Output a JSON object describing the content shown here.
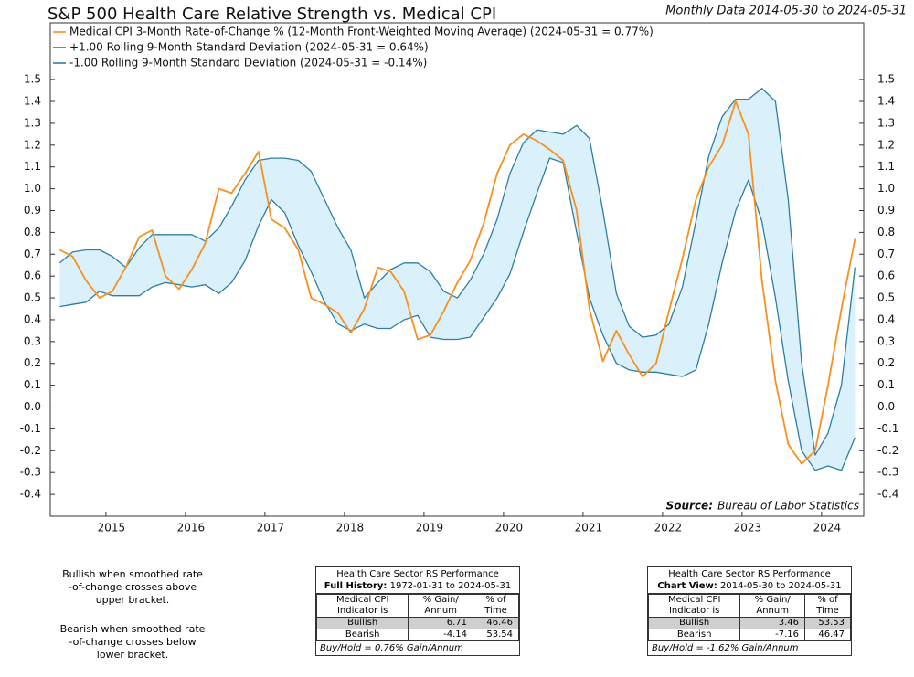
{
  "chart_data": {
    "type": "line",
    "title": "S&P 500 Health Care Relative Strength vs. Medical CPI",
    "subtitle": "Monthly Data 2014-05-30 to 2024-05-31",
    "source_label": "Source:",
    "source": "Bureau of Labor Statistics",
    "x": [
      2014.42,
      2014.58,
      2014.75,
      2014.92,
      2015.08,
      2015.25,
      2015.42,
      2015.58,
      2015.75,
      2015.92,
      2016.08,
      2016.25,
      2016.42,
      2016.58,
      2016.75,
      2016.92,
      2017.08,
      2017.25,
      2017.42,
      2017.58,
      2017.75,
      2017.92,
      2018.08,
      2018.25,
      2018.42,
      2018.58,
      2018.75,
      2018.92,
      2019.08,
      2019.25,
      2019.42,
      2019.58,
      2019.75,
      2019.92,
      2020.08,
      2020.25,
      2020.42,
      2020.58,
      2020.75,
      2020.92,
      2021.08,
      2021.25,
      2021.42,
      2021.58,
      2021.75,
      2021.92,
      2022.08,
      2022.25,
      2022.42,
      2022.58,
      2022.75,
      2022.92,
      2023.08,
      2023.25,
      2023.42,
      2023.58,
      2023.75,
      2023.92,
      2024.08,
      2024.25,
      2024.42
    ],
    "series": [
      {
        "name": "Medical CPI 3-Month Rate-of-Change % (12-Month Front-Weighted Moving Average)  (2024-05-31 = 0.77%)",
        "color": "#f7901e",
        "values": [
          0.72,
          0.69,
          0.58,
          0.5,
          0.53,
          0.64,
          0.78,
          0.81,
          0.6,
          0.54,
          0.63,
          0.75,
          1.0,
          0.98,
          1.07,
          1.17,
          0.86,
          0.82,
          0.72,
          0.5,
          0.47,
          0.43,
          0.34,
          0.45,
          0.64,
          0.62,
          0.53,
          0.31,
          0.33,
          0.44,
          0.57,
          0.67,
          0.84,
          1.07,
          1.2,
          1.25,
          1.22,
          1.18,
          1.13,
          0.9,
          0.45,
          0.21,
          0.35,
          0.24,
          0.14,
          0.2,
          0.44,
          0.68,
          0.95,
          1.1,
          1.2,
          1.4,
          1.25,
          0.58,
          0.12,
          -0.17,
          -0.26,
          -0.2,
          0.1,
          0.45,
          0.77
        ]
      },
      {
        "name": "+1.00 Rolling 9-Month Standard Deviation (2024-05-31 = 0.64%)",
        "color": "#2e7ea3",
        "values": [
          0.66,
          0.71,
          0.72,
          0.72,
          0.69,
          0.64,
          0.73,
          0.79,
          0.79,
          0.79,
          0.79,
          0.76,
          0.82,
          0.92,
          1.04,
          1.13,
          1.14,
          1.14,
          1.13,
          1.08,
          0.95,
          0.82,
          0.72,
          0.5,
          0.57,
          0.63,
          0.66,
          0.66,
          0.62,
          0.53,
          0.5,
          0.58,
          0.7,
          0.86,
          1.07,
          1.21,
          1.27,
          1.26,
          1.25,
          1.29,
          1.23,
          0.9,
          0.52,
          0.37,
          0.32,
          0.33,
          0.38,
          0.55,
          0.85,
          1.15,
          1.33,
          1.41,
          1.41,
          1.46,
          1.4,
          0.95,
          0.2,
          -0.22,
          -0.12,
          0.1,
          0.64
        ]
      },
      {
        "name": "-1.00 Rolling 9-Month Standard Deviation (2024-05-31 = -0.14%)",
        "color": "#2e7ea3",
        "values": [
          0.46,
          0.47,
          0.48,
          0.53,
          0.51,
          0.51,
          0.51,
          0.55,
          0.57,
          0.56,
          0.55,
          0.56,
          0.52,
          0.57,
          0.67,
          0.83,
          0.95,
          0.89,
          0.74,
          0.62,
          0.48,
          0.38,
          0.35,
          0.38,
          0.36,
          0.36,
          0.4,
          0.42,
          0.32,
          0.31,
          0.31,
          0.32,
          0.41,
          0.5,
          0.61,
          0.8,
          0.98,
          1.14,
          1.12,
          0.8,
          0.5,
          0.33,
          0.2,
          0.17,
          0.16,
          0.16,
          0.15,
          0.14,
          0.17,
          0.38,
          0.66,
          0.9,
          1.04,
          0.85,
          0.5,
          0.12,
          -0.2,
          -0.29,
          -0.27,
          -0.29,
          -0.14
        ]
      }
    ],
    "band_color": "#daf1fb",
    "xlim": [
      2014.3,
      2024.53
    ],
    "xticks": [
      2015,
      2016,
      2017,
      2018,
      2019,
      2020,
      2021,
      2022,
      2023,
      2024
    ],
    "ylim": [
      -0.5,
      1.76
    ],
    "yticks": [
      1.5,
      1.4,
      1.3,
      1.2,
      1.1,
      {
        "value": 1,
        "label": "1.0"
      },
      0.9,
      0.8,
      0.7,
      0.6,
      0.5,
      0.4,
      0.3,
      0.2,
      0.1,
      {
        "value": 0,
        "label": "0.0"
      },
      -0.1,
      -0.2,
      -0.3,
      -0.4
    ],
    "y2lim": [
      -0.5,
      1.76
    ],
    "y2ticks": [
      1.5,
      1.4,
      1.3,
      1.2,
      1.1,
      {
        "value": 1,
        "label": "1.0"
      },
      0.9,
      0.8,
      0.7,
      0.6,
      0.5,
      0.4,
      0.3,
      0.2,
      0.1,
      {
        "value": 0,
        "label": "0.0"
      },
      -0.1,
      -0.2,
      -0.3,
      -0.4
    ],
    "legend": "upper-left"
  },
  "notes": [
    [
      "Bullish when smoothed rate",
      "-of-change crosses above",
      "upper bracket."
    ],
    [
      "Bearish when smoothed rate",
      "-of-change crosses below",
      "lower bracket."
    ]
  ],
  "tables": [
    {
      "title": "Health Care Sector RS Performance",
      "range_label": "Full History:",
      "range": "1972-01-31 to 2024-05-31",
      "header": [
        "Medical CPI Indicator is",
        "% Gain/ Annum",
        "% of Time"
      ],
      "rows": [
        [
          "Bullish",
          6.71,
          46.46
        ],
        [
          "Bearish",
          -4.14,
          53.54
        ]
      ],
      "footer": "Buy/Hold = 0.76% Gain/Annum"
    },
    {
      "title": "Health Care Sector RS Performance",
      "range_label": "Chart View:",
      "range": "2014-05-30 to 2024-05-31",
      "header": [
        "Medical CPI Indicator is",
        "% Gain/ Annum",
        "% of Time"
      ],
      "rows": [
        [
          "Bullish",
          3.46,
          53.53
        ],
        [
          "Bearish",
          -7.16,
          46.47
        ]
      ],
      "footer": "Buy/Hold = -1.62% Gain/Annum"
    }
  ]
}
